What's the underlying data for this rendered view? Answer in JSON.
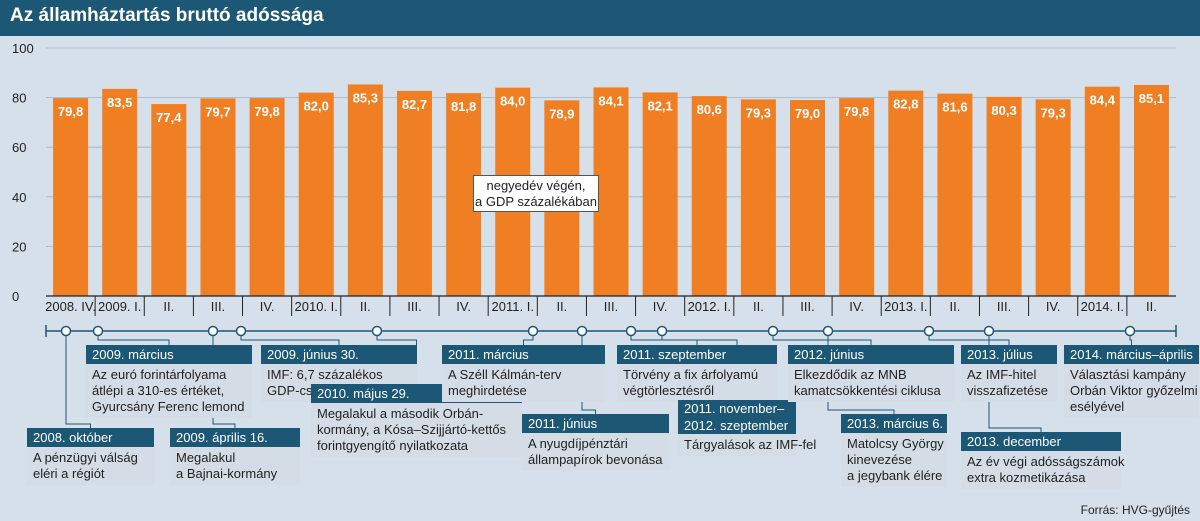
{
  "title": "Az államháztartás bruttó adóssága",
  "source": "Forrás: HVG-gyűjtés",
  "colors": {
    "bar": "#f07f23",
    "header": "#1c5876",
    "background": "#d6e0ea",
    "box": "#d4dde6"
  },
  "chart_data": {
    "type": "bar",
    "title": "Az államháztartás bruttó adóssága",
    "note": [
      "negyedév végén,",
      "a GDP százalékában"
    ],
    "ylabel": "",
    "xlabel": "",
    "ylim": [
      0,
      100
    ],
    "yticks": [
      0,
      20,
      40,
      60,
      80,
      100
    ],
    "grid": true,
    "categories": [
      "2008. IV.",
      "2009. I.",
      "II.",
      "III.",
      "IV.",
      "2010. I.",
      "II.",
      "III.",
      "IV.",
      "2011. I.",
      "II.",
      "III.",
      "IV.",
      "2012. I.",
      "II.",
      "III.",
      "IV.",
      "2013. I.",
      "II.",
      "III.",
      "IV.",
      "2014. I.",
      "II."
    ],
    "values": [
      79.8,
      83.5,
      77.4,
      79.7,
      79.8,
      82.0,
      85.3,
      82.7,
      81.8,
      84.0,
      78.9,
      84.1,
      82.1,
      80.6,
      79.3,
      79.0,
      79.8,
      82.8,
      81.6,
      80.3,
      79.3,
      84.4,
      85.1
    ],
    "value_labels": [
      "79,8",
      "83,5",
      "77,4",
      "79,7",
      "79,8",
      "82,0",
      "85,3",
      "82,7",
      "81,8",
      "84,0",
      "78,9",
      "84,1",
      "82,1",
      "80,6",
      "79,3",
      "79,0",
      "79,8",
      "82,8",
      "81,6",
      "80,3",
      "79,3",
      "84,4",
      "85,1"
    ]
  },
  "events": [
    {
      "date": "2008. október",
      "lines": [
        "A pénzügyi válság",
        "eléri a régiót"
      ]
    },
    {
      "date": "2009. március",
      "lines": [
        "Az euró forintárfolyama",
        "átlépi a 310-es értéket,",
        "Gyurcsány Ferenc lemond"
      ]
    },
    {
      "date": "2009. április 16.",
      "lines": [
        "Megalakul",
        "a Bajnai-kormány"
      ]
    },
    {
      "date": "2009. június 30.",
      "lines": [
        "IMF: 6,7 százalékos",
        "GDP-csökkenés várható"
      ]
    },
    {
      "date": "2010. május 29.",
      "lines": [
        "Megalakul a második Orbán-",
        "kormány, a Kósa–Szijjártó-kettős",
        "forintgyengítő nyilatkozata"
      ]
    },
    {
      "date": "2011. március",
      "lines": [
        "A Széll Kálmán-terv",
        "meghirdetése"
      ]
    },
    {
      "date": "2011. június",
      "lines": [
        "A nyugdíjpénztári",
        "állampapírok bevonása"
      ]
    },
    {
      "date": "2011. szeptember",
      "lines": [
        "Törvény a fix árfolyamú",
        "végtörlesztésről"
      ]
    },
    {
      "date": "2011. november–\n2012. szeptember",
      "date_lines": [
        "2011. november–",
        "2012. szeptember"
      ],
      "lines": [
        "Tárgyalások az IMF-fel"
      ]
    },
    {
      "date": "2012. június",
      "lines": [
        "Elkezdődik az MNB",
        "kamatcsökkentési ciklusa"
      ]
    },
    {
      "date": "2013. március 6.",
      "lines": [
        "Matolcsy György",
        "kinevezése",
        "a jegybank élére"
      ]
    },
    {
      "date": "2013. július",
      "lines": [
        "Az IMF-hitel",
        "visszafizetése"
      ]
    },
    {
      "date": "2013. december",
      "lines": [
        "Az év végi adósságszámok",
        "extra kozmetikázása"
      ]
    },
    {
      "date": "2014. március–április",
      "lines": [
        "Választási kampány",
        "Orbán Viktor győzelmi",
        "esélyével"
      ]
    }
  ]
}
